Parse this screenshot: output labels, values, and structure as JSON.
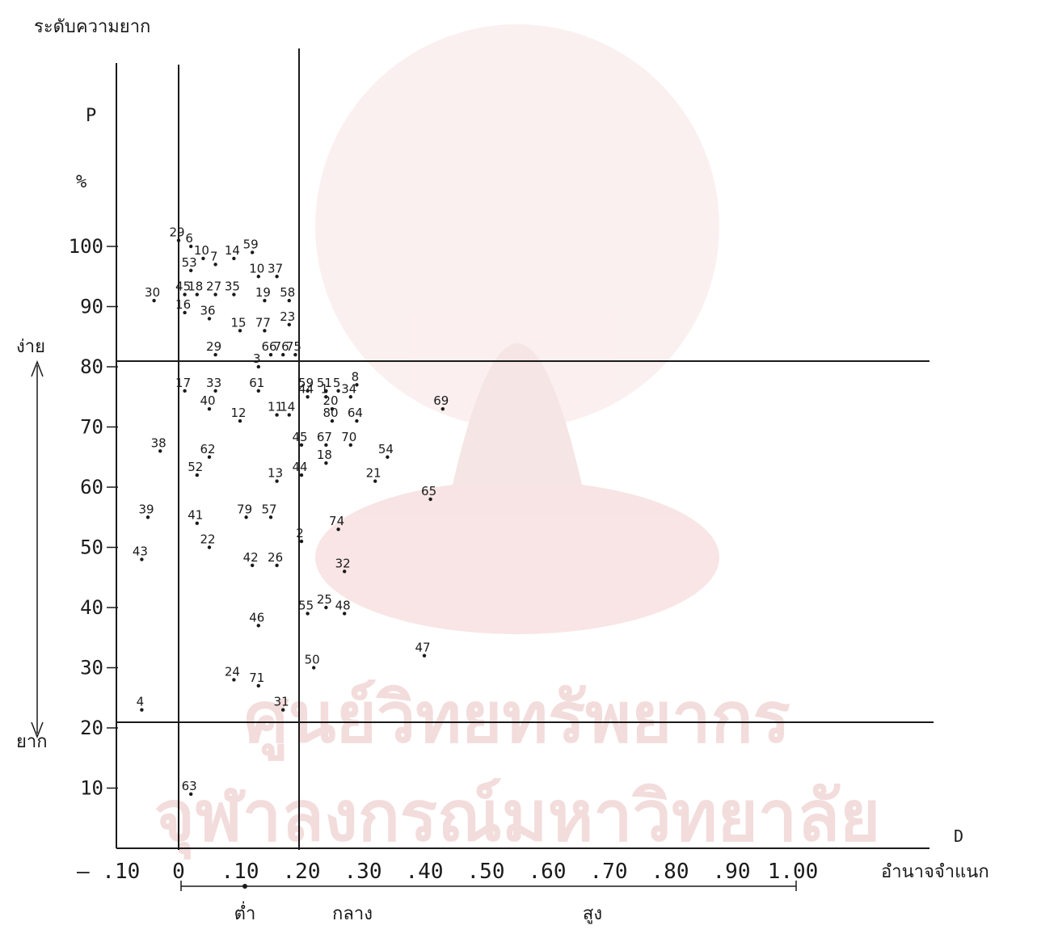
{
  "chart_data": {
    "type": "scatter",
    "ytitle": "ระดับความยาก",
    "ysymbol": "P",
    "yunit": "%",
    "xsymbol": "D",
    "xtitle": "อำนาจจำแนก",
    "ylim": [
      0,
      100
    ],
    "xlim": [
      -0.1,
      1.0
    ],
    "x_ticks": [
      {
        "label": "— .10",
        "value": -0.1
      },
      {
        "label": "0",
        "value": 0
      },
      {
        "label": ".10",
        "value": 0.1
      },
      {
        "label": ".20",
        "value": 0.2
      },
      {
        "label": ".30",
        "value": 0.3
      },
      {
        "label": ".40",
        "value": 0.4
      },
      {
        "label": ".50",
        "value": 0.5
      },
      {
        "label": ".60",
        "value": 0.6
      },
      {
        "label": ".70",
        "value": 0.7
      },
      {
        "label": ".80",
        "value": 0.8
      },
      {
        "label": ".90",
        "value": 0.9
      },
      {
        "label": "1.00",
        "value": 1.0
      }
    ],
    "y_ticks": [
      {
        "label": "10",
        "value": 10
      },
      {
        "label": "20",
        "value": 20
      },
      {
        "label": "30",
        "value": 30
      },
      {
        "label": "40",
        "value": 40
      },
      {
        "label": "50",
        "value": 50
      },
      {
        "label": "60",
        "value": 60
      },
      {
        "label": "70",
        "value": 70
      },
      {
        "label": "80",
        "value": 80
      },
      {
        "label": "90",
        "value": 90
      },
      {
        "label": "100",
        "value": 100
      }
    ],
    "reference_lines": {
      "vertical": [
        0,
        0.2
      ],
      "horizontal": [
        20,
        80
      ]
    },
    "side_labels": {
      "easy": "ง่าย",
      "hard": "ยาก"
    },
    "discrimination_bands": [
      {
        "label": "ต่ำ",
        "from": 0,
        "to": 0.2
      },
      {
        "label": "กลาง",
        "from": 0.2,
        "to": 0.4
      },
      {
        "label": "สูง",
        "from": 0.4,
        "to": 1.0
      }
    ],
    "points": [
      {
        "label": "29",
        "x": 0.0,
        "y": 101
      },
      {
        "label": "6",
        "x": 0.02,
        "y": 100
      },
      {
        "label": "10",
        "x": 0.04,
        "y": 98
      },
      {
        "label": "7",
        "x": 0.06,
        "y": 97
      },
      {
        "label": "14",
        "x": 0.09,
        "y": 98
      },
      {
        "label": "59",
        "x": 0.12,
        "y": 99
      },
      {
        "label": "53",
        "x": 0.02,
        "y": 96
      },
      {
        "label": "10",
        "x": 0.13,
        "y": 95
      },
      {
        "label": "37",
        "x": 0.16,
        "y": 95
      },
      {
        "label": "30",
        "x": -0.04,
        "y": 91
      },
      {
        "label": "45",
        "x": 0.01,
        "y": 92
      },
      {
        "label": "18",
        "x": 0.03,
        "y": 92
      },
      {
        "label": "27",
        "x": 0.06,
        "y": 92
      },
      {
        "label": "35",
        "x": 0.09,
        "y": 92
      },
      {
        "label": "19",
        "x": 0.14,
        "y": 91
      },
      {
        "label": "58",
        "x": 0.18,
        "y": 91
      },
      {
        "label": "16",
        "x": 0.01,
        "y": 89
      },
      {
        "label": "36",
        "x": 0.05,
        "y": 88
      },
      {
        "label": "15",
        "x": 0.1,
        "y": 86
      },
      {
        "label": "77",
        "x": 0.14,
        "y": 86
      },
      {
        "label": "23",
        "x": 0.18,
        "y": 87
      },
      {
        "label": "29",
        "x": 0.06,
        "y": 82
      },
      {
        "label": "66",
        "x": 0.15,
        "y": 82
      },
      {
        "label": "76",
        "x": 0.17,
        "y": 82
      },
      {
        "label": "75",
        "x": 0.19,
        "y": 82
      },
      {
        "label": "3",
        "x": 0.13,
        "y": 80
      },
      {
        "label": "17",
        "x": 0.01,
        "y": 76
      },
      {
        "label": "33",
        "x": 0.06,
        "y": 76
      },
      {
        "label": "61",
        "x": 0.13,
        "y": 76
      },
      {
        "label": "40",
        "x": 0.05,
        "y": 73
      },
      {
        "label": "12",
        "x": 0.1,
        "y": 71
      },
      {
        "label": "11",
        "x": 0.16,
        "y": 72
      },
      {
        "label": "14",
        "x": 0.18,
        "y": 72
      },
      {
        "label": "38",
        "x": -0.03,
        "y": 66
      },
      {
        "label": "62",
        "x": 0.05,
        "y": 65
      },
      {
        "label": "52",
        "x": 0.03,
        "y": 62
      },
      {
        "label": "13",
        "x": 0.16,
        "y": 61
      },
      {
        "label": "39",
        "x": -0.05,
        "y": 55
      },
      {
        "label": "41",
        "x": 0.03,
        "y": 54
      },
      {
        "label": "79",
        "x": 0.11,
        "y": 55
      },
      {
        "label": "57",
        "x": 0.15,
        "y": 55
      },
      {
        "label": "43",
        "x": -0.06,
        "y": 48
      },
      {
        "label": "22",
        "x": 0.05,
        "y": 50
      },
      {
        "label": "42",
        "x": 0.12,
        "y": 47
      },
      {
        "label": "26",
        "x": 0.16,
        "y": 47
      },
      {
        "label": "46",
        "x": 0.13,
        "y": 37
      },
      {
        "label": "24",
        "x": 0.09,
        "y": 28
      },
      {
        "label": "71",
        "x": 0.13,
        "y": 27
      },
      {
        "label": "31",
        "x": 0.17,
        "y": 23
      },
      {
        "label": "4",
        "x": -0.06,
        "y": 23
      },
      {
        "label": "63",
        "x": 0.02,
        "y": 9
      },
      {
        "label": "59",
        "x": 0.21,
        "y": 76
      },
      {
        "label": "51",
        "x": 0.24,
        "y": 76
      },
      {
        "label": "5",
        "x": 0.26,
        "y": 76
      },
      {
        "label": "8",
        "x": 0.29,
        "y": 77
      },
      {
        "label": "44",
        "x": 0.21,
        "y": 75
      },
      {
        "label": "1",
        "x": 0.24,
        "y": 75
      },
      {
        "label": "34",
        "x": 0.28,
        "y": 75
      },
      {
        "label": "20",
        "x": 0.25,
        "y": 73
      },
      {
        "label": "80",
        "x": 0.25,
        "y": 71
      },
      {
        "label": "64",
        "x": 0.29,
        "y": 71
      },
      {
        "label": "69",
        "x": 0.43,
        "y": 73
      },
      {
        "label": "45",
        "x": 0.2,
        "y": 67
      },
      {
        "label": "67",
        "x": 0.24,
        "y": 67
      },
      {
        "label": "70",
        "x": 0.28,
        "y": 67
      },
      {
        "label": "54",
        "x": 0.34,
        "y": 65
      },
      {
        "label": "18",
        "x": 0.24,
        "y": 64
      },
      {
        "label": "44",
        "x": 0.2,
        "y": 62
      },
      {
        "label": "21",
        "x": 0.32,
        "y": 61
      },
      {
        "label": "65",
        "x": 0.41,
        "y": 58
      },
      {
        "label": "74",
        "x": 0.26,
        "y": 53
      },
      {
        "label": "2",
        "x": 0.2,
        "y": 51
      },
      {
        "label": "32",
        "x": 0.27,
        "y": 46
      },
      {
        "label": "55",
        "x": 0.21,
        "y": 39
      },
      {
        "label": "25",
        "x": 0.24,
        "y": 40
      },
      {
        "label": "48",
        "x": 0.27,
        "y": 39
      },
      {
        "label": "50",
        "x": 0.22,
        "y": 30
      },
      {
        "label": "47",
        "x": 0.4,
        "y": 32
      }
    ]
  }
}
